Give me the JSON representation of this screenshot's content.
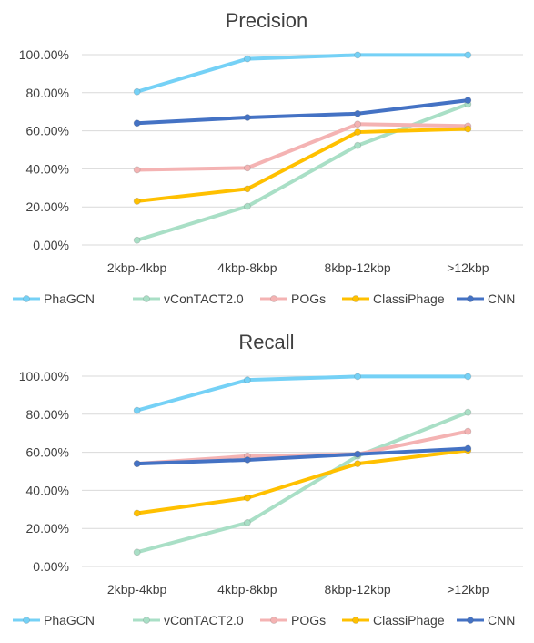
{
  "chart_data": [
    {
      "type": "line",
      "title": "Precision",
      "categories": [
        "2kbp-4kbp",
        "4kbp-8kbp",
        "8kbp-12kbp",
        ">12kbp"
      ],
      "yticks": [
        "0.00%",
        "20.00%",
        "40.00%",
        "60.00%",
        "80.00%",
        "100.00%"
      ],
      "ylim": [
        0,
        100
      ],
      "grid": true,
      "legend_position": "bottom",
      "series": [
        {
          "name": "PhaGCN",
          "color": "#75d1f6",
          "values": [
            80.5,
            97.8,
            99.8,
            99.8
          ]
        },
        {
          "name": "vConTACT2.0",
          "color": "#a9dfc6",
          "values": [
            2.5,
            20.3,
            52.3,
            74.0
          ]
        },
        {
          "name": "POGs",
          "color": "#f4b3b3",
          "values": [
            39.5,
            40.5,
            63.5,
            62.5
          ]
        },
        {
          "name": "ClassiPhage",
          "color": "#ffc000",
          "values": [
            23.0,
            29.5,
            59.3,
            61.0
          ]
        },
        {
          "name": "CNN",
          "color": "#4472c4",
          "values": [
            64.0,
            67.0,
            69.0,
            76.0
          ]
        }
      ]
    },
    {
      "type": "line",
      "title": "Recall",
      "categories": [
        "2kbp-4kbp",
        "4kbp-8kbp",
        "8kbp-12kbp",
        ">12kbp"
      ],
      "yticks": [
        "0.00%",
        "20.00%",
        "40.00%",
        "60.00%",
        "80.00%",
        "100.00%"
      ],
      "ylim": [
        0,
        100
      ],
      "grid": true,
      "legend_position": "bottom",
      "series": [
        {
          "name": "PhaGCN",
          "color": "#75d1f6",
          "values": [
            82.0,
            98.0,
            99.8,
            99.8
          ]
        },
        {
          "name": "vConTACT2.0",
          "color": "#a9dfc6",
          "values": [
            7.5,
            23.0,
            58.0,
            81.0
          ]
        },
        {
          "name": "POGs",
          "color": "#f4b3b3",
          "values": [
            54.0,
            58.0,
            59.0,
            71.0
          ]
        },
        {
          "name": "ClassiPhage",
          "color": "#ffc000",
          "values": [
            28.0,
            36.0,
            54.0,
            61.0
          ]
        },
        {
          "name": "CNN",
          "color": "#4472c4",
          "values": [
            54.0,
            56.0,
            59.0,
            62.0
          ]
        }
      ]
    }
  ]
}
